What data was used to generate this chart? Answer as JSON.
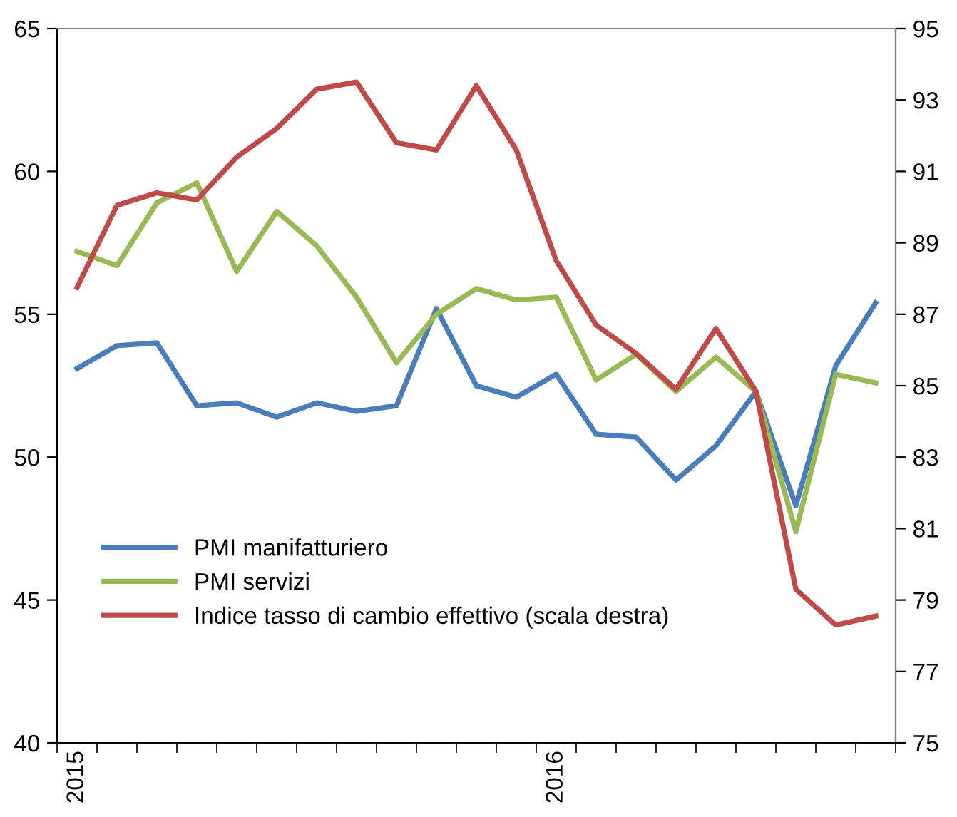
{
  "chart_data": {
    "type": "line",
    "categories": [
      "2015",
      null,
      null,
      null,
      null,
      null,
      null,
      null,
      null,
      null,
      null,
      null,
      "2016",
      null,
      null,
      null,
      null,
      null,
      null,
      null,
      null
    ],
    "series": [
      {
        "name": "PMI manifatturiero",
        "color": "#4a7ebb",
        "values": [
          53.1,
          53.9,
          54.0,
          51.8,
          51.9,
          51.4,
          51.9,
          51.6,
          51.8,
          55.2,
          52.5,
          52.1,
          52.9,
          50.8,
          50.7,
          49.2,
          50.4,
          52.3,
          48.3,
          53.2,
          55.4
        ]
      },
      {
        "name": "PMI servizi",
        "color": "#98b954",
        "values": [
          57.2,
          56.7,
          58.9,
          59.6,
          56.5,
          58.6,
          57.4,
          55.6,
          53.3,
          55.0,
          55.9,
          55.5,
          55.6,
          52.7,
          53.6,
          52.3,
          53.5,
          52.3,
          47.4,
          52.9,
          52.6
        ]
      },
      {
        "name": "Indice tasso di cambio effettivo (scala destra)",
        "color": "#be4b48",
        "axis": "y2",
        "values": [
          87.75,
          90.05,
          90.4,
          90.2,
          91.4,
          92.2,
          93.3,
          93.5,
          91.8,
          91.6,
          93.4,
          91.6,
          88.5,
          86.7,
          85.9,
          84.9,
          86.6,
          84.85,
          79.3,
          78.3,
          78.55
        ]
      }
    ],
    "ylim": [
      40,
      65
    ],
    "yticks": [
      40,
      45,
      50,
      55,
      60,
      65
    ],
    "y2lim": [
      75,
      95
    ],
    "y2ticks": [
      75,
      77,
      79,
      81,
      83,
      85,
      87,
      89,
      91,
      93,
      95
    ],
    "legend": "bottom left",
    "grid": false,
    "marker": "none",
    "line_style": "solid"
  }
}
